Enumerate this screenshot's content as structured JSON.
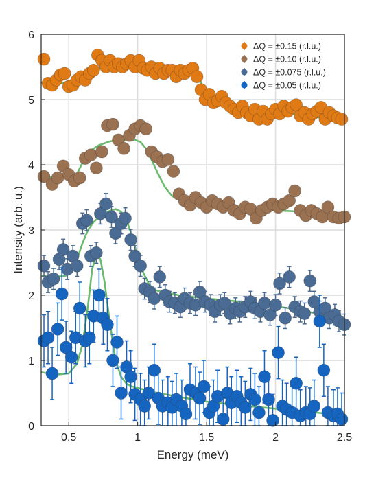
{
  "chart_data": {
    "type": "scatter",
    "xlabel": "Energy (meV)",
    "ylabel": "Intensity (arb. u.)",
    "xlim": [
      0.3,
      2.5
    ],
    "ylim": [
      0,
      6
    ],
    "xticks": [
      0.5,
      1,
      1.5,
      2,
      2.5
    ],
    "yticks": [
      0,
      1,
      2,
      3,
      4,
      5,
      6
    ],
    "grid": true,
    "legend_position": "top-right",
    "fit_color": "#6ab96c",
    "series": [
      {
        "name": "ΔQ = ±0.15 (r.l.u.)",
        "color": "#e07a14",
        "x": [
          0.32,
          0.35,
          0.38,
          0.41,
          0.44,
          0.47,
          0.5,
          0.53,
          0.56,
          0.59,
          0.62,
          0.65,
          0.68,
          0.71,
          0.74,
          0.77,
          0.8,
          0.83,
          0.86,
          0.89,
          0.92,
          0.95,
          0.98,
          1.01,
          1.04,
          1.07,
          1.1,
          1.13,
          1.16,
          1.19,
          1.22,
          1.25,
          1.28,
          1.31,
          1.34,
          1.37,
          1.4,
          1.43,
          1.46,
          1.49,
          1.52,
          1.55,
          1.58,
          1.61,
          1.64,
          1.67,
          1.7,
          1.73,
          1.76,
          1.79,
          1.82,
          1.85,
          1.88,
          1.91,
          1.94,
          1.97,
          2.0,
          2.03,
          2.06,
          2.09,
          2.12,
          2.15,
          2.18,
          2.21,
          2.24,
          2.27,
          2.3,
          2.33,
          2.36,
          2.39,
          2.42,
          2.45,
          2.48
        ],
        "y": [
          5.62,
          5.25,
          5.22,
          5.3,
          5.38,
          5.4,
          5.2,
          5.22,
          5.3,
          5.35,
          5.3,
          5.4,
          5.45,
          5.68,
          5.6,
          5.5,
          5.6,
          5.5,
          5.55,
          5.5,
          5.55,
          5.6,
          5.5,
          5.6,
          5.48,
          5.45,
          5.5,
          5.4,
          5.48,
          5.4,
          5.45,
          5.45,
          5.35,
          5.45,
          5.4,
          5.45,
          5.48,
          5.35,
          5.15,
          5.0,
          5.08,
          4.95,
          4.98,
          5.05,
          4.95,
          4.9,
          4.85,
          4.8,
          4.9,
          4.8,
          4.75,
          4.85,
          4.7,
          4.82,
          4.7,
          4.78,
          4.85,
          4.78,
          4.9,
          4.82,
          4.88,
          4.92,
          4.75,
          4.8,
          4.7,
          4.78,
          4.82,
          4.88,
          4.7,
          4.8,
          4.75,
          4.72,
          4.7
        ],
        "err": 0.05
      },
      {
        "name": "ΔQ = ±0.10 (r.l.u.)",
        "color": "#9a7252",
        "x": [
          0.32,
          0.38,
          0.42,
          0.46,
          0.5,
          0.54,
          0.58,
          0.62,
          0.66,
          0.7,
          0.74,
          0.78,
          0.82,
          0.86,
          0.9,
          0.94,
          0.98,
          1.02,
          1.06,
          1.1,
          1.14,
          1.18,
          1.22,
          1.26,
          1.3,
          1.34,
          1.38,
          1.42,
          1.46,
          1.5,
          1.54,
          1.58,
          1.62,
          1.66,
          1.7,
          1.74,
          1.78,
          1.82,
          1.86,
          1.9,
          1.94,
          1.98,
          2.02,
          2.06,
          2.1,
          2.14,
          2.18,
          2.22,
          2.26,
          2.3,
          2.34,
          2.38,
          2.42,
          2.46,
          2.5
        ],
        "y": [
          3.82,
          3.7,
          3.8,
          3.98,
          3.85,
          3.75,
          3.8,
          4.1,
          4.15,
          3.95,
          4.2,
          4.6,
          4.62,
          4.38,
          4.25,
          4.45,
          4.55,
          4.6,
          4.55,
          4.2,
          4.12,
          4.05,
          4.08,
          3.9,
          3.55,
          3.45,
          3.38,
          3.5,
          3.42,
          3.35,
          3.45,
          3.4,
          3.35,
          3.42,
          3.3,
          3.25,
          3.35,
          3.32,
          3.18,
          3.3,
          3.35,
          3.4,
          3.35,
          3.4,
          3.45,
          3.6,
          3.3,
          3.22,
          3.3,
          3.25,
          3.2,
          3.35,
          3.2,
          3.18,
          3.2
        ],
        "err": 0.07
      },
      {
        "name": "ΔQ = ±0.075 (r.l.u.)",
        "color": "#4a6b94",
        "x": [
          0.32,
          0.35,
          0.39,
          0.43,
          0.46,
          0.49,
          0.53,
          0.56,
          0.6,
          0.63,
          0.66,
          0.7,
          0.73,
          0.77,
          0.81,
          0.84,
          0.88,
          0.91,
          0.95,
          0.98,
          1.02,
          1.05,
          1.09,
          1.12,
          1.16,
          1.2,
          1.23,
          1.27,
          1.31,
          1.34,
          1.38,
          1.42,
          1.45,
          1.49,
          1.53,
          1.56,
          1.6,
          1.63,
          1.67,
          1.71,
          1.74,
          1.78,
          1.82,
          1.85,
          1.89,
          1.92,
          1.96,
          2.0,
          2.03,
          2.07,
          2.1,
          2.14,
          2.18,
          2.21,
          2.25,
          2.28,
          2.32,
          2.36,
          2.39,
          2.43,
          2.46,
          2.5
        ],
        "y": [
          2.45,
          2.2,
          2.25,
          2.55,
          2.7,
          2.4,
          2.6,
          2.45,
          3.1,
          3.15,
          2.6,
          2.65,
          3.25,
          3.4,
          3.2,
          2.95,
          3.1,
          3.18,
          2.85,
          2.6,
          2.45,
          2.1,
          2.05,
          1.95,
          2.28,
          2.0,
          1.9,
          1.88,
          1.82,
          1.95,
          1.88,
          1.85,
          2.05,
          1.9,
          1.85,
          1.75,
          1.85,
          1.88,
          1.72,
          1.8,
          1.75,
          1.82,
          1.9,
          1.8,
          1.75,
          1.88,
          1.7,
          1.85,
          2.18,
          1.65,
          2.28,
          1.82,
          1.75,
          1.72,
          2.22,
          1.9,
          1.75,
          1.8,
          1.65,
          1.7,
          1.6,
          1.55
        ],
        "err": 0.16
      },
      {
        "name": "ΔQ = ±0.05 (r.l.u.)",
        "color": "#1565c0",
        "x": [
          0.32,
          0.35,
          0.38,
          0.42,
          0.45,
          0.48,
          0.52,
          0.55,
          0.58,
          0.62,
          0.65,
          0.68,
          0.72,
          0.75,
          0.78,
          0.82,
          0.85,
          0.88,
          0.92,
          0.95,
          0.98,
          1.02,
          1.05,
          1.08,
          1.12,
          1.15,
          1.18,
          1.22,
          1.25,
          1.28,
          1.32,
          1.35,
          1.38,
          1.42,
          1.45,
          1.48,
          1.52,
          1.55,
          1.58,
          1.62,
          1.65,
          1.68,
          1.72,
          1.75,
          1.78,
          1.82,
          1.85,
          1.88,
          1.92,
          1.95,
          1.98,
          2.02,
          2.05,
          2.08,
          2.12,
          2.15,
          2.18,
          2.22,
          2.25,
          2.28,
          2.32,
          2.35,
          2.38,
          2.42,
          2.45,
          2.48
        ],
        "y": [
          1.3,
          1.35,
          0.8,
          1.48,
          2.02,
          1.2,
          1.05,
          1.35,
          1.8,
          1.3,
          1.35,
          1.68,
          2.0,
          1.65,
          1.55,
          1.0,
          1.28,
          0.5,
          0.9,
          0.75,
          0.48,
          0.4,
          0.3,
          0.5,
          0.85,
          0.42,
          0.3,
          0.35,
          0.28,
          0.4,
          0.3,
          0.18,
          0.55,
          0.5,
          0.42,
          0.6,
          0.2,
          0.3,
          0.45,
          0.1,
          0.5,
          0.35,
          0.45,
          0.35,
          0.28,
          0.48,
          0.4,
          0.2,
          0.75,
          0.4,
          0.08,
          1.12,
          0.3,
          0.25,
          0.2,
          0.65,
          0.15,
          0.2,
          0.18,
          0.3,
          1.6,
          0.85,
          0.2,
          0.15,
          0.18,
          0.1
        ],
        "err": 0.4
      }
    ],
    "fits": [
      {
        "x": [
          0.3,
          0.4,
          0.5,
          0.55,
          0.6,
          0.66,
          0.72,
          0.8,
          0.9,
          1.0,
          1.1,
          1.2,
          1.3,
          1.38,
          1.42,
          1.46,
          1.5,
          1.6,
          1.7,
          1.8,
          1.9,
          2.0,
          2.1,
          2.2,
          2.3,
          2.4,
          2.5
        ],
        "y": [
          5.26,
          5.24,
          5.26,
          5.3,
          5.35,
          5.42,
          5.48,
          5.5,
          5.5,
          5.49,
          5.48,
          5.47,
          5.46,
          5.46,
          5.4,
          5.26,
          5.1,
          4.98,
          4.92,
          4.87,
          4.84,
          4.81,
          4.78,
          4.76,
          4.73,
          4.7,
          4.66
        ]
      },
      {
        "x": [
          0.3,
          0.4,
          0.5,
          0.55,
          0.58,
          0.62,
          0.66,
          0.72,
          0.8,
          0.9,
          0.98,
          1.02,
          1.06,
          1.1,
          1.15,
          1.2,
          1.25,
          1.3,
          1.4,
          1.5,
          1.6,
          1.8,
          2.0,
          2.2,
          2.4,
          2.5
        ],
        "y": [
          3.82,
          3.8,
          3.8,
          3.82,
          3.95,
          4.12,
          4.22,
          4.3,
          4.36,
          4.38,
          4.38,
          4.35,
          4.25,
          4.08,
          3.85,
          3.65,
          3.52,
          3.46,
          3.42,
          3.4,
          3.38,
          3.35,
          3.3,
          3.28,
          3.22,
          3.18
        ]
      },
      {
        "x": [
          0.3,
          0.4,
          0.48,
          0.52,
          0.56,
          0.6,
          0.64,
          0.68,
          0.72,
          0.78,
          0.84,
          0.88,
          0.92,
          0.96,
          1.0,
          1.04,
          1.08,
          1.12,
          1.2,
          1.3,
          1.5,
          1.7,
          1.9,
          2.1,
          2.3,
          2.5
        ],
        "y": [
          2.3,
          2.28,
          2.3,
          2.4,
          2.55,
          2.8,
          3.0,
          3.12,
          3.2,
          3.28,
          3.32,
          3.28,
          3.15,
          2.9,
          2.6,
          2.35,
          2.18,
          2.08,
          2.04,
          2.0,
          1.95,
          1.91,
          1.86,
          1.8,
          1.72,
          1.63
        ]
      },
      {
        "x": [
          0.3,
          0.4,
          0.5,
          0.56,
          0.6,
          0.64,
          0.67,
          0.7,
          0.73,
          0.76,
          0.8,
          0.84,
          0.88,
          0.92,
          0.96,
          1.0,
          1.1,
          1.3,
          1.5,
          1.7,
          1.9,
          2.1,
          2.3,
          2.5
        ],
        "y": [
          0.82,
          0.78,
          0.8,
          0.95,
          1.25,
          1.85,
          2.4,
          2.62,
          2.55,
          2.2,
          1.55,
          1.0,
          0.75,
          0.64,
          0.6,
          0.58,
          0.52,
          0.44,
          0.37,
          0.32,
          0.28,
          0.24,
          0.2,
          0.15
        ]
      }
    ]
  }
}
